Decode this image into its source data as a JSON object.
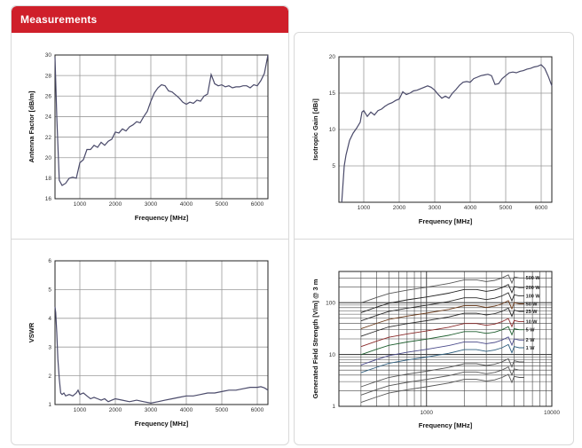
{
  "header": {
    "title": "Measurements"
  },
  "colors": {
    "header_bg": "#cf1f2a",
    "grid": "#9a9a9a",
    "line": "#4a4a6a"
  },
  "chart_data": [
    {
      "id": "af",
      "type": "line",
      "xlabel": "Frequency [MHz]",
      "ylabel": "Antenna Factor [dB/m]",
      "xlim": [
        300,
        6300
      ],
      "ylim": [
        16,
        30
      ],
      "xticks": [
        1000,
        2000,
        3000,
        4000,
        5000,
        6000
      ],
      "yticks": [
        16,
        18,
        20,
        22,
        24,
        26,
        28,
        30
      ],
      "x": [
        300,
        350,
        420,
        500,
        600,
        700,
        800,
        900,
        1000,
        1100,
        1200,
        1300,
        1400,
        1500,
        1600,
        1700,
        1800,
        1900,
        2000,
        2100,
        2200,
        2300,
        2400,
        2500,
        2600,
        2700,
        2800,
        2900,
        3000,
        3100,
        3200,
        3300,
        3400,
        3500,
        3600,
        3700,
        3800,
        3900,
        4000,
        4100,
        4200,
        4300,
        4400,
        4500,
        4600,
        4700,
        4800,
        4900,
        5000,
        5100,
        5200,
        5300,
        5400,
        5500,
        5600,
        5700,
        5800,
        5900,
        6000,
        6100,
        6200,
        6300
      ],
      "y": [
        29.8,
        24,
        17.8,
        17.3,
        17.5,
        18,
        18.1,
        18,
        19.5,
        19.8,
        20.8,
        20.8,
        21.2,
        21,
        21.5,
        21.2,
        21.6,
        21.8,
        22.5,
        22.4,
        22.8,
        22.6,
        23,
        23.2,
        23.5,
        23.4,
        24,
        24.5,
        25.5,
        26.3,
        26.8,
        27.1,
        27,
        26.5,
        26.4,
        26.1,
        25.8,
        25.4,
        25.2,
        25.4,
        25.3,
        25.6,
        25.5,
        26,
        26.2,
        28.1,
        27.2,
        27,
        27.1,
        26.9,
        27,
        26.8,
        26.9,
        26.9,
        27,
        27,
        26.8,
        27.1,
        27,
        27.5,
        28.2,
        30
      ]
    },
    {
      "id": "gain",
      "type": "line",
      "xlabel": "Frequency [MHz]",
      "ylabel": "Isotropic Gain [dBi]",
      "xlim": [
        300,
        6300
      ],
      "ylim": [
        0,
        20
      ],
      "xticks": [
        1000,
        2000,
        3000,
        4000,
        5000,
        6000
      ],
      "yticks": [
        5,
        10,
        15,
        20
      ],
      "x": [
        380,
        450,
        500,
        600,
        700,
        800,
        900,
        950,
        1000,
        1100,
        1200,
        1300,
        1400,
        1500,
        1600,
        1700,
        1800,
        1900,
        2000,
        2100,
        2200,
        2300,
        2400,
        2500,
        2600,
        2700,
        2800,
        2900,
        3000,
        3100,
        3200,
        3300,
        3400,
        3500,
        3600,
        3700,
        3800,
        3900,
        4000,
        4100,
        4200,
        4300,
        4400,
        4500,
        4600,
        4700,
        4800,
        4900,
        5000,
        5100,
        5200,
        5300,
        5400,
        5500,
        5600,
        5700,
        5800,
        5900,
        6000,
        6100,
        6200,
        6300
      ],
      "y": [
        0,
        5,
        6.5,
        8.5,
        9.5,
        10.2,
        11,
        12.4,
        12.6,
        11.8,
        12.4,
        12,
        12.6,
        12.8,
        13.2,
        13.5,
        13.7,
        14,
        14.2,
        15.2,
        14.8,
        15,
        15.3,
        15.4,
        15.6,
        15.8,
        16,
        15.8,
        15.4,
        14.8,
        14.3,
        14.6,
        14.3,
        15,
        15.5,
        16.1,
        16.5,
        16.6,
        16.5,
        17,
        17.2,
        17.4,
        17.5,
        17.6,
        17.4,
        16.2,
        16.3,
        17,
        17.4,
        17.8,
        17.9,
        17.8,
        18,
        18.1,
        18.3,
        18.4,
        18.6,
        18.7,
        18.9,
        18.4,
        17.3,
        16
      ]
    },
    {
      "id": "vswr",
      "type": "line",
      "xlabel": "Frequency [MHz]",
      "ylabel": "VSWR",
      "xlim": [
        300,
        6300
      ],
      "ylim": [
        1,
        6
      ],
      "xticks": [
        1000,
        2000,
        3000,
        4000,
        5000,
        6000
      ],
      "yticks": [
        1,
        2,
        3,
        4,
        5,
        6
      ],
      "x": [
        300,
        320,
        350,
        380,
        420,
        460,
        500,
        550,
        600,
        700,
        800,
        900,
        950,
        1000,
        1100,
        1200,
        1300,
        1400,
        1500,
        1600,
        1700,
        1800,
        1900,
        2000,
        2200,
        2400,
        2600,
        2800,
        3000,
        3200,
        3400,
        3600,
        3800,
        4000,
        4200,
        4400,
        4600,
        4800,
        5000,
        5200,
        5400,
        5600,
        5800,
        6000,
        6100,
        6200,
        6300
      ],
      "y": [
        4.4,
        4.2,
        3.5,
        2.6,
        1.9,
        1.4,
        1.35,
        1.4,
        1.3,
        1.35,
        1.3,
        1.4,
        1.5,
        1.35,
        1.4,
        1.3,
        1.2,
        1.25,
        1.2,
        1.15,
        1.2,
        1.1,
        1.15,
        1.2,
        1.15,
        1.1,
        1.15,
        1.1,
        1.05,
        1.1,
        1.15,
        1.2,
        1.25,
        1.3,
        1.3,
        1.35,
        1.4,
        1.4,
        1.45,
        1.5,
        1.5,
        1.55,
        1.6,
        1.6,
        1.62,
        1.58,
        1.5
      ]
    },
    {
      "id": "field",
      "type": "line",
      "scale": "log-log",
      "xlabel": "Frequency [MHz]",
      "ylabel": "Generated Field Strength [V/m] @ 3 m",
      "xlim": [
        200,
        10000
      ],
      "ylim": [
        1,
        400
      ],
      "xtick_labels": [
        "1000",
        "10000"
      ],
      "xtick_values": [
        1000,
        10000
      ],
      "ytick_labels": [
        "1",
        "10",
        "100"
      ],
      "ytick_values": [
        1,
        10,
        100
      ],
      "shape_x": [
        300,
        400,
        500,
        700,
        1000,
        1500,
        2000,
        2500,
        3000,
        3500,
        4000,
        4500,
        4800,
        5000,
        5500,
        6000
      ],
      "shape_f": [
        0.33,
        0.42,
        0.5,
        0.58,
        0.66,
        0.78,
        0.92,
        0.92,
        0.85,
        0.9,
        1.0,
        1.15,
        0.8,
        1.05,
        1.0,
        1.0
      ],
      "series": [
        {
          "name": "500 W",
          "level": 300,
          "color": "#555555"
        },
        {
          "name": "200 W",
          "level": 195,
          "color": "#222222"
        },
        {
          "name": "100 W",
          "level": 135,
          "color": "#2a2a2a"
        },
        {
          "name": "50 W",
          "level": 95,
          "color": "#6b3b1b"
        },
        {
          "name": "25 W",
          "level": 68,
          "color": "#2c2c2c"
        },
        {
          "name": "10 W",
          "level": 43,
          "color": "#8a2a2a"
        },
        {
          "name": "5 W",
          "level": 30,
          "color": "#1f5f2f"
        },
        {
          "name": "2 W",
          "level": 19,
          "color": "#4a4a8a"
        },
        {
          "name": "1 W",
          "level": 13.5,
          "color": "#2f5f7f"
        }
      ],
      "extra_lines": [
        7.2,
        5.0,
        3.6
      ]
    }
  ]
}
